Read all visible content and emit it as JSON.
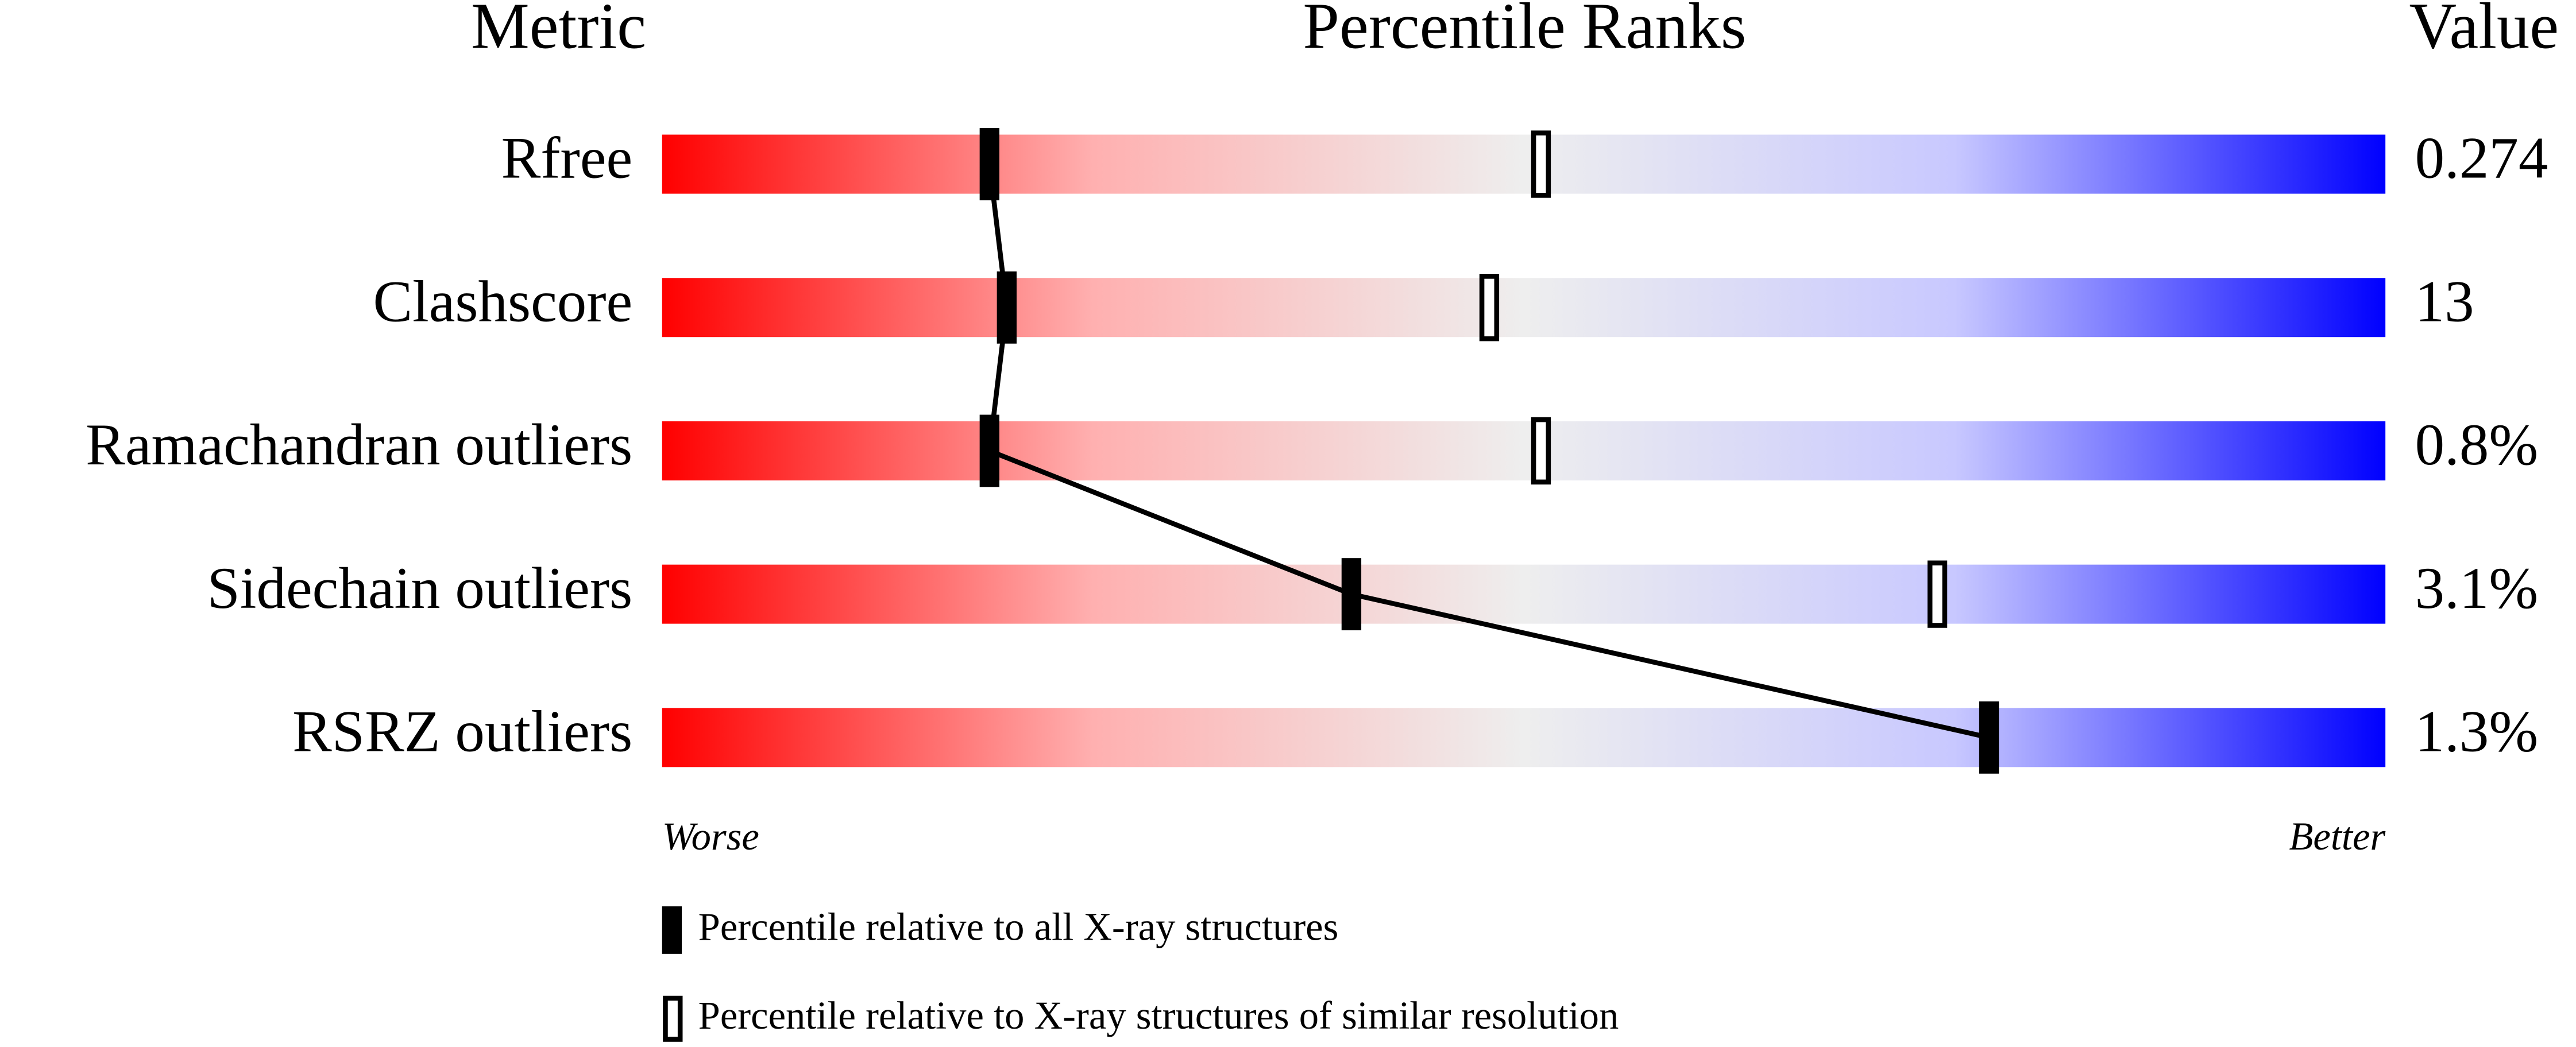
{
  "chart_data": {
    "type": "percentile-slider",
    "headers": {
      "metric": "Metric",
      "ranks": "Percentile Ranks",
      "value": "Value"
    },
    "categories": [
      "Rfree",
      "Clashscore",
      "Ramachandran outliers",
      "Sidechain outliers",
      "RSRZ outliers"
    ],
    "value_texts": [
      "0.274",
      "13",
      "0.8%",
      "3.1%",
      "1.3%"
    ],
    "series": [
      {
        "name": "Percentile relative to all X-ray structures",
        "color": "#000000",
        "marker": "filled",
        "values": [
          19,
          20,
          19,
          40,
          77
        ]
      },
      {
        "name": "Percentile relative to X-ray structures of similar resolution",
        "color": "#000000",
        "marker": "hollow",
        "values": [
          51,
          48,
          51,
          74,
          null
        ]
      }
    ],
    "xlim": [
      0,
      100
    ],
    "axis_labels": {
      "low": "Worse",
      "high": "Better"
    },
    "gradient": [
      "#ff0000",
      "#ffb0b0",
      "#eeeeee",
      "#c8c8ff",
      "#0000ff"
    ]
  }
}
